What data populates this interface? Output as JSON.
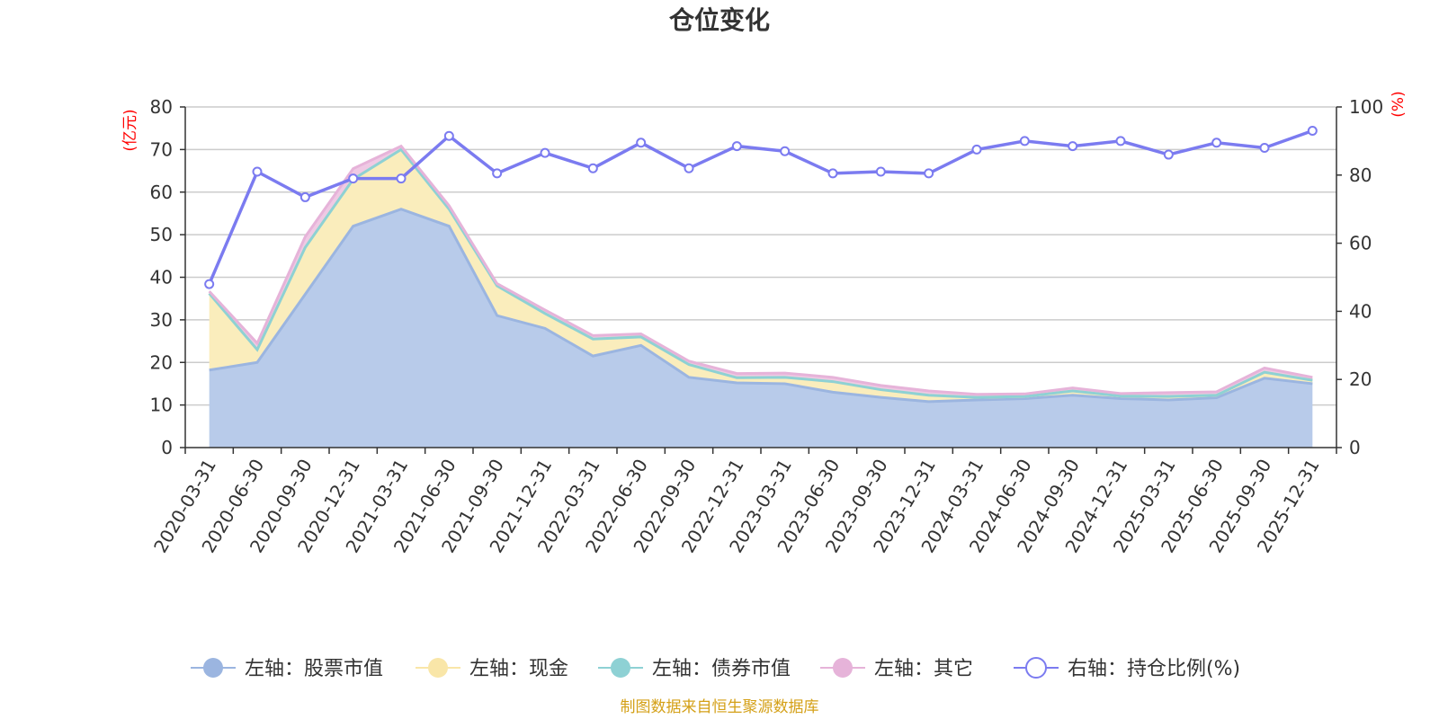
{
  "chart_data": {
    "type": "area",
    "title": "仓位变化",
    "x": [
      "2020-03-31",
      "2020-06-30",
      "2020-09-30",
      "2020-12-31",
      "2021-03-31",
      "2021-06-30",
      "2021-09-30",
      "2021-12-31",
      "2022-03-31",
      "2022-06-30",
      "2022-09-30",
      "2022-12-31",
      "2023-03-31",
      "2023-06-30",
      "2023-09-30",
      "2023-12-31",
      "2024-03-31",
      "2024-06-30",
      "2024-09-30",
      "2024-12-31",
      "2025-03-31",
      "2025-06-30",
      "2025-09-30",
      "2025-12-31"
    ],
    "left_axis": {
      "unit": "(亿元)",
      "ylim": [
        0,
        80
      ],
      "ticks": [
        0,
        10,
        20,
        30,
        40,
        50,
        60,
        70,
        80
      ]
    },
    "right_axis": {
      "unit": "(%)",
      "ylim": [
        0,
        100
      ],
      "ticks": [
        0,
        20,
        40,
        60,
        80,
        100
      ]
    },
    "series": [
      {
        "name": "左轴：股票市值",
        "axis": "left",
        "type": "area",
        "color": "#9bb5e0",
        "fill": "#b8cbea",
        "values": [
          18.2,
          20.0,
          36.0,
          52.0,
          56.0,
          52.0,
          31.0,
          28.0,
          21.5,
          24.0,
          16.5,
          15.2,
          15.0,
          13.0,
          11.8,
          10.8,
          11.2,
          11.5,
          12.3,
          11.5,
          11.2,
          11.7,
          16.3,
          15.0
        ]
      },
      {
        "name": "左轴：现金",
        "axis": "left",
        "type": "area",
        "color": "#f9e6a8",
        "fill": "#faedbc",
        "values": [
          18.0,
          3.0,
          11.0,
          11.0,
          14.0,
          4.0,
          7.0,
          3.5,
          4.0,
          2.0,
          3.0,
          1.2,
          1.5,
          2.5,
          1.8,
          1.5,
          0.6,
          0.5,
          1.0,
          0.6,
          0.8,
          0.6,
          1.4,
          0.8
        ]
      },
      {
        "name": "左轴：债券市值",
        "axis": "left",
        "type": "area",
        "color": "#8ed1d4",
        "fill": "#a8dcde",
        "values": [
          0,
          0,
          0,
          0,
          0,
          0,
          0,
          0,
          0,
          0,
          0,
          0,
          0,
          0,
          0,
          0,
          0,
          0,
          0,
          0,
          0,
          0,
          0,
          0
        ]
      },
      {
        "name": "左轴：其它",
        "axis": "left",
        "type": "area",
        "color": "#e6b3d9",
        "fill": "#efc9e4",
        "values": [
          0.5,
          1.5,
          2.5,
          2.5,
          0.8,
          0.8,
          0.5,
          0.8,
          0.8,
          0.7,
          0.8,
          1.0,
          1.0,
          1.0,
          1.0,
          1.0,
          0.7,
          0.6,
          0.7,
          0.6,
          0.9,
          0.8,
          1.0,
          0.7
        ]
      },
      {
        "name": "右轴：持仓比例(%)",
        "axis": "right",
        "type": "line",
        "color": "#7b7bf0",
        "values": [
          48.0,
          81.0,
          73.5,
          79.0,
          79.0,
          91.5,
          80.5,
          86.5,
          82.0,
          89.5,
          82.0,
          88.5,
          87.0,
          80.5,
          81.0,
          80.5,
          87.5,
          90.0,
          88.5,
          90.0,
          86.0,
          89.5,
          88.0,
          93.0
        ]
      }
    ],
    "legend_position": "bottom",
    "source": "制图数据来自恒生聚源数据库"
  }
}
